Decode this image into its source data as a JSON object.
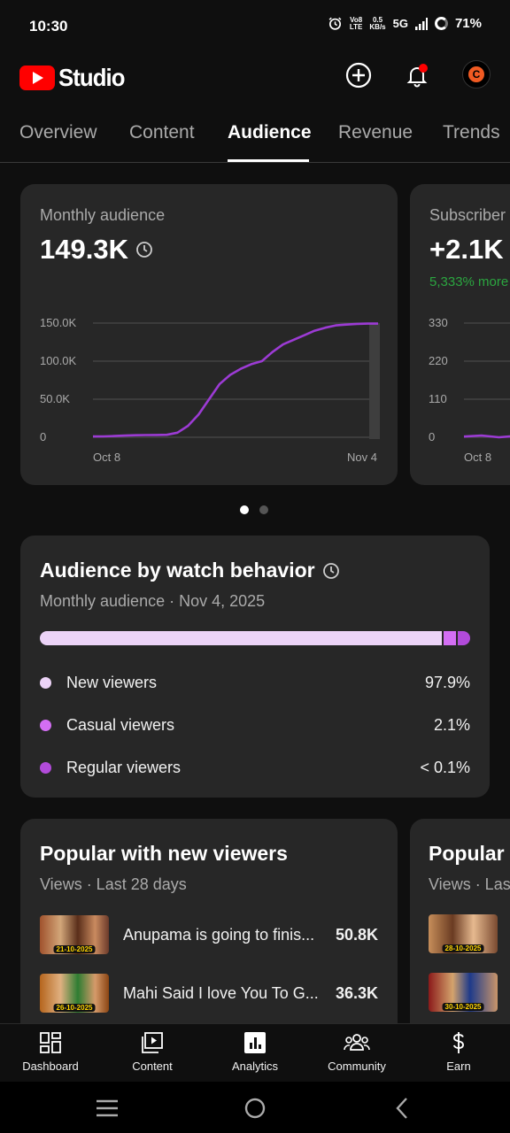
{
  "status_bar": {
    "time": "10:30",
    "net_top": "Vo8",
    "net_bottom": "LTE",
    "speed_top": "0.5",
    "speed_bottom": "KB/s",
    "network": "5G",
    "battery": "71%",
    "icons": [
      "alarm-icon",
      "signal-icon",
      "battery-ring-icon"
    ]
  },
  "app": {
    "logo_text": "Studio",
    "create_icon": "plus-circle-icon",
    "notification_icon": "bell-icon",
    "avatar_letter": "C"
  },
  "tabs": [
    {
      "label": "Overview",
      "active": false
    },
    {
      "label": "Content",
      "active": false
    },
    {
      "label": "Audience",
      "active": true
    },
    {
      "label": "Revenue",
      "active": false
    },
    {
      "label": "Trends",
      "active": false
    }
  ],
  "monthly_card": {
    "label": "Monthly audience",
    "value": "149.3K",
    "value_icon": "clock-icon",
    "y_ticks": [
      "150.0K",
      "100.0K",
      "50.0K",
      "0"
    ],
    "x_ticks": [
      "Oct 8",
      "Nov 4"
    ]
  },
  "subscriber_card": {
    "label": "Subscriber",
    "value": "+2.1K",
    "change": "5,333% more",
    "y_ticks": [
      "330",
      "220",
      "110",
      "0"
    ],
    "x_ticks": [
      "Oct 8"
    ]
  },
  "chart_data": [
    {
      "type": "line",
      "title": "",
      "ylim": [
        0,
        150000
      ],
      "x": [
        "Oct 8",
        "Oct 9",
        "Oct 10",
        "Oct 11",
        "Oct 12",
        "Oct 13",
        "Oct 14",
        "Oct 15",
        "Oct 16",
        "Oct 17",
        "Oct 18",
        "Oct 19",
        "Oct 20",
        "Oct 21",
        "Oct 22",
        "Oct 23",
        "Oct 24",
        "Oct 25",
        "Oct 26",
        "Oct 27",
        "Oct 28",
        "Oct 29",
        "Oct 30",
        "Oct 31",
        "Nov 1",
        "Nov 2",
        "Nov 3",
        "Nov 4"
      ],
      "series": [
        {
          "values": [
            1000,
            1200,
            1600,
            2200,
            2700,
            2900,
            3000,
            3200,
            6000,
            15000,
            30000,
            50000,
            70000,
            82000,
            90000,
            96000,
            100000,
            112000,
            122000,
            128000,
            134000,
            140000,
            144000,
            147000,
            148000,
            149000,
            149300,
            149300
          ]
        }
      ],
      "color": "#9c3bd4"
    },
    {
      "type": "line",
      "title": "",
      "ylim": [
        0,
        330
      ],
      "x": [
        "Oct 8",
        "Oct 9",
        "Oct 10",
        "Oct 11",
        "Oct 12"
      ],
      "series": [
        {
          "values": [
            2,
            5,
            0,
            4,
            2
          ]
        }
      ],
      "color": "#9c3bd4"
    }
  ],
  "pager": {
    "count": 2,
    "active": 0
  },
  "watch_behavior": {
    "title": "Audience by watch behavior",
    "title_icon": "clock-icon",
    "subtitle": "Monthly audience · Nov 4, 2025",
    "segments": [
      {
        "name": "New viewers",
        "value": "97.9%",
        "share": 0.979,
        "color": "#ecd3f7"
      },
      {
        "name": "Casual viewers",
        "value": "2.1%",
        "share": 0.021,
        "color": "#d36ef3"
      },
      {
        "name": "Regular viewers",
        "value": "< 0.1%",
        "share": 0.001,
        "color": "#b24bda"
      }
    ]
  },
  "popular_card": {
    "title": "Popular with new viewers",
    "subtitle": "Views · Last 28 days",
    "videos": [
      {
        "title": "Anupama is going to finis...",
        "views": "50.8K",
        "thumb_date": "21-10-2025"
      },
      {
        "title": "Mahi Said I love You To G...",
        "views": "36.3K",
        "thumb_date": "26-10-2025"
      }
    ]
  },
  "popular_card_2": {
    "title": "Popular",
    "subtitle": "Views · Las",
    "thumb_dates": [
      "28-10-2025",
      "30-10-2025"
    ]
  },
  "bottom_nav": [
    {
      "label": "Dashboard",
      "icon": "dashboard-icon"
    },
    {
      "label": "Content",
      "icon": "content-icon"
    },
    {
      "label": "Analytics",
      "icon": "analytics-icon"
    },
    {
      "label": "Community",
      "icon": "community-icon"
    },
    {
      "label": "Earn",
      "icon": "earn-dollar-icon"
    }
  ]
}
